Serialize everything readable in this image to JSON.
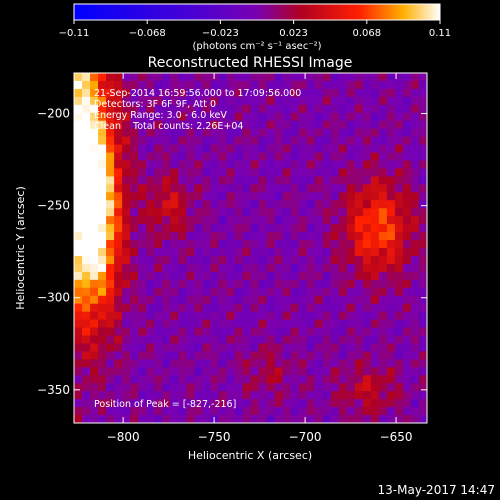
{
  "chart_data": {
    "type": "heatmap",
    "title": "Reconstructed RHESSI Image",
    "xlabel": "Heliocentric X (arcsec)",
    "ylabel": "Heliocentric Y (arcsec)",
    "xlim": [
      -827,
      -633
    ],
    "ylim": [
      -368,
      -178
    ],
    "x_ticks": [
      -800,
      -750,
      -700,
      -650
    ],
    "y_ticks": [
      -200,
      -250,
      -300,
      -350
    ],
    "x_tick_labels": [
      "−800",
      "−750",
      "−700",
      "−650"
    ],
    "y_tick_labels": [
      "−200",
      "−250",
      "−300",
      "−350"
    ],
    "colorbar": {
      "range": [
        -0.11,
        0.11
      ],
      "ticks": [
        "−0.11",
        "−0.068",
        "−0.023",
        "0.023",
        "0.068",
        "0.11"
      ],
      "unit_label": "(photons cm⁻² s⁻¹ asec⁻²)"
    },
    "annotations": [
      "21-Sep-2014 16:59:56.000 to 17:09:56.000",
      "Detectors: 3F 6F 9F, Att 0",
      "Energy Range: 3.0 - 6.0 keV",
      "Clean    Total counts: 2.26E+04"
    ],
    "peak_label": "Position of Peak = [-827,-216]",
    "sources": [
      {
        "x": -827,
        "y": -216,
        "peak": 0.11,
        "sx": 14,
        "sy": 60
      },
      {
        "x": -815,
        "y": -260,
        "peak": 0.08,
        "sx": 10,
        "sy": 35
      },
      {
        "x": -660,
        "y": -262,
        "peak": 0.065,
        "sx": 13,
        "sy": 18
      },
      {
        "x": -775,
        "y": -250,
        "peak": 0.035,
        "sx": 9,
        "sy": 12
      },
      {
        "x": -665,
        "y": -350,
        "peak": 0.03,
        "sx": 12,
        "sy": 10
      },
      {
        "x": -720,
        "y": -340,
        "peak": 0.02,
        "sx": 10,
        "sy": 10
      }
    ],
    "colors": {
      "negative": "#0000ff",
      "zero": "#7a00b0",
      "positive_mid": "#e60000",
      "positive_high": "#ffd000",
      "max": "#ffffff"
    }
  },
  "footer": {
    "date": "13-May-2017 14:47"
  }
}
